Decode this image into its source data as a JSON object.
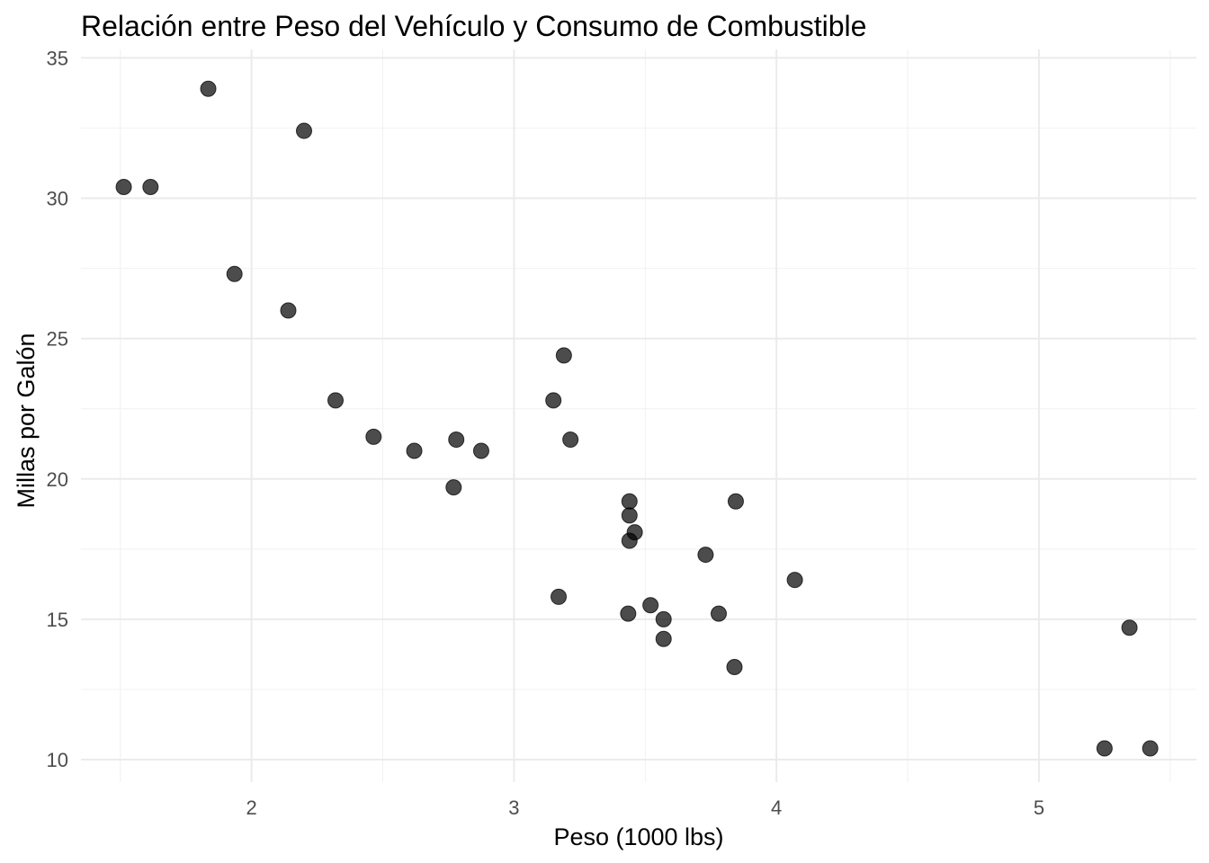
{
  "chart_data": {
    "type": "scatter",
    "title": "Relación entre Peso del Vehículo y Consumo de Combustible",
    "xlabel": "Peso (1000 lbs)",
    "ylabel": "Millas por Galón",
    "xlim": [
      1.35,
      5.6
    ],
    "ylim": [
      9.2,
      35.3
    ],
    "xticks": [
      2,
      3,
      4,
      5
    ],
    "xtick_labels": [
      "2",
      "3",
      "4",
      "5"
    ],
    "yticks": [
      10,
      15,
      20,
      25,
      30,
      35
    ],
    "ytick_labels": [
      "10",
      "15",
      "20",
      "25",
      "30",
      "35"
    ],
    "x_minor": [
      1.5,
      2.5,
      3.5,
      4.5,
      5.5
    ],
    "y_minor": [
      12.5,
      17.5,
      22.5,
      27.5,
      32.5
    ],
    "grid": true,
    "legend": "none",
    "point_color": "#000000",
    "points": [
      {
        "x": 2.62,
        "y": 21.0
      },
      {
        "x": 2.875,
        "y": 21.0
      },
      {
        "x": 2.32,
        "y": 22.8
      },
      {
        "x": 3.215,
        "y": 21.4
      },
      {
        "x": 3.44,
        "y": 18.7
      },
      {
        "x": 3.46,
        "y": 18.1
      },
      {
        "x": 3.57,
        "y": 14.3
      },
      {
        "x": 3.19,
        "y": 24.4
      },
      {
        "x": 3.15,
        "y": 22.8
      },
      {
        "x": 3.44,
        "y": 19.2
      },
      {
        "x": 3.44,
        "y": 17.8
      },
      {
        "x": 4.07,
        "y": 16.4
      },
      {
        "x": 3.73,
        "y": 17.3
      },
      {
        "x": 3.78,
        "y": 15.2
      },
      {
        "x": 5.25,
        "y": 10.4
      },
      {
        "x": 5.424,
        "y": 10.4
      },
      {
        "x": 5.345,
        "y": 14.7
      },
      {
        "x": 2.2,
        "y": 32.4
      },
      {
        "x": 1.615,
        "y": 30.4
      },
      {
        "x": 1.835,
        "y": 33.9
      },
      {
        "x": 2.465,
        "y": 21.5
      },
      {
        "x": 3.52,
        "y": 15.5
      },
      {
        "x": 3.435,
        "y": 15.2
      },
      {
        "x": 3.84,
        "y": 13.3
      },
      {
        "x": 3.845,
        "y": 19.2
      },
      {
        "x": 1.935,
        "y": 27.3
      },
      {
        "x": 2.14,
        "y": 26.0
      },
      {
        "x": 1.513,
        "y": 30.4
      },
      {
        "x": 3.17,
        "y": 15.8
      },
      {
        "x": 2.77,
        "y": 19.7
      },
      {
        "x": 3.57,
        "y": 15.0
      },
      {
        "x": 2.78,
        "y": 21.4
      }
    ]
  }
}
